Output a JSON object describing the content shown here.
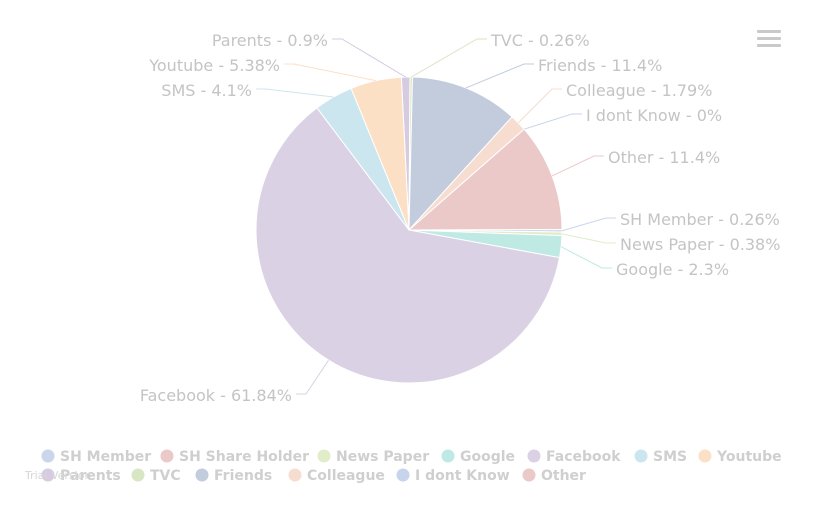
{
  "chart_data": {
    "type": "pie",
    "slices": [
      {
        "name": "Parents",
        "value": 0.9,
        "label": "Parents - 0.9%",
        "color": "#d6cbe0"
      },
      {
        "name": "TVC",
        "value": 0.26,
        "label": "TVC - 0.26%",
        "color": "#d9e6c3"
      },
      {
        "name": "Friends",
        "value": 11.4,
        "label": "Friends - 11.4%",
        "color": "#c2ccdd"
      },
      {
        "name": "Colleague",
        "value": 1.79,
        "label": "Colleague - 1.79%",
        "color": "#f7dcd0"
      },
      {
        "name": "I dont Know",
        "value": 0,
        "label": "I dont Know - 0%",
        "color": "#c7d5ec"
      },
      {
        "name": "Other",
        "value": 11.4,
        "label": "Other - 11.4%",
        "color": "#ecc9c9"
      },
      {
        "name": "SH Member",
        "value": 0.26,
        "label": "SH Member - 0.26%",
        "color": "#c9d6ec"
      },
      {
        "name": "News Paper",
        "value": 0.38,
        "label": "News Paper - 0.38%",
        "color": "#e1ecca"
      },
      {
        "name": "Google",
        "value": 2.3,
        "label": "Google - 2.3%",
        "color": "#bfeae3"
      },
      {
        "name": "Facebook",
        "value": 61.84,
        "label": "Facebook - 61.84%",
        "color": "#dbd1e4"
      },
      {
        "name": "SMS",
        "value": 4.1,
        "label": "SMS - 4.1%",
        "color": "#cbe6ee"
      },
      {
        "name": "Youtube",
        "value": 5.38,
        "label": "Youtube - 5.38%",
        "color": "#fce0c6"
      }
    ],
    "legend": {
      "placement": "bottom",
      "items": [
        {
          "name": "SH Member",
          "color": "#c9d6ec"
        },
        {
          "name": "SH Share Holder",
          "color": "#ecc9c9"
        },
        {
          "name": "News Paper",
          "color": "#e1ecca"
        },
        {
          "name": "Google",
          "color": "#bfeae3"
        },
        {
          "name": "Facebook",
          "color": "#dbd1e4"
        },
        {
          "name": "SMS",
          "color": "#cbe6ee"
        },
        {
          "name": "Youtube",
          "color": "#fce0c6"
        },
        {
          "name": "Parents",
          "color": "#d6cbe0"
        },
        {
          "name": "TVC",
          "color": "#d9e6c3"
        },
        {
          "name": "Friends",
          "color": "#c2ccdd"
        },
        {
          "name": "Colleague",
          "color": "#f7dcd0"
        },
        {
          "name": "I dont Know",
          "color": "#c7d5ec"
        },
        {
          "name": "Other",
          "color": "#ecc9c9"
        }
      ]
    }
  },
  "watermark": "Trial Version",
  "menu": {
    "icon": "hamburger-menu-icon"
  }
}
